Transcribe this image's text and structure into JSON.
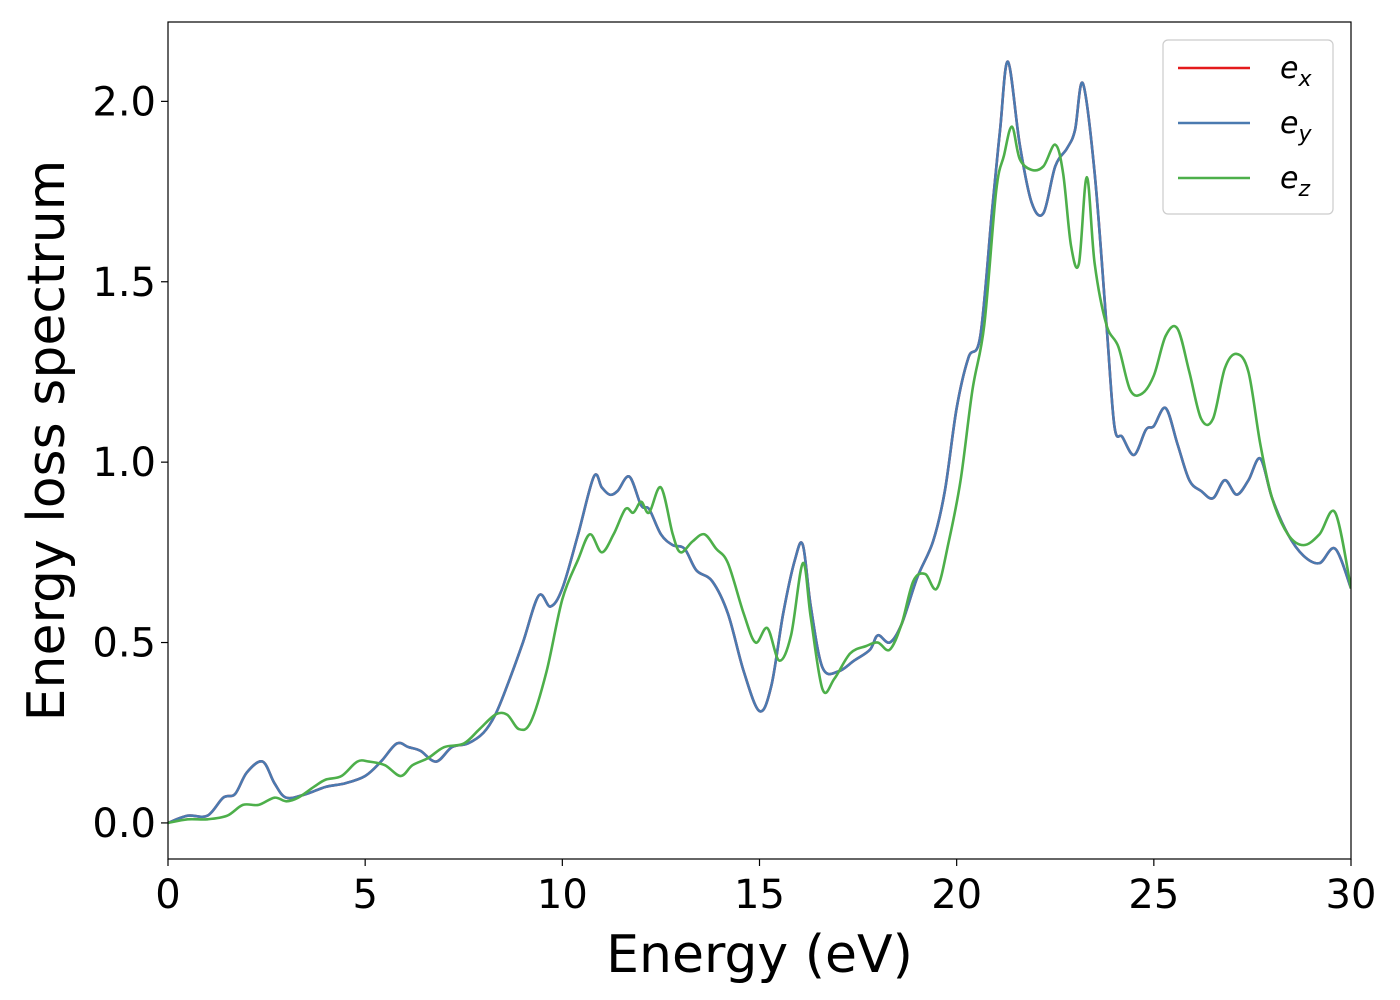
{
  "chart_data": {
    "type": "line",
    "xlabel": "Energy (eV)",
    "ylabel": "Energy loss spectrum",
    "xlim": [
      0,
      30
    ],
    "ylim": [
      -0.1,
      2.22
    ],
    "xticks": [
      0,
      5,
      10,
      15,
      20,
      25,
      30
    ],
    "xtick_labels": [
      "0",
      "5",
      "10",
      "15",
      "20",
      "25",
      "30"
    ],
    "yticks": [
      0.0,
      0.5,
      1.0,
      1.5,
      2.0
    ],
    "ytick_labels": [
      "0.0",
      "0.5",
      "1.0",
      "1.5",
      "2.0"
    ],
    "grid": false,
    "legend_position": "top-right",
    "series": [
      {
        "name": "e_x",
        "legend_base": "e",
        "legend_sub": "x",
        "color": "#e41a1c",
        "x": [
          0,
          0.5,
          1.0,
          1.4,
          1.7,
          2.0,
          2.4,
          2.7,
          3.0,
          3.5,
          4.0,
          4.5,
          5.0,
          5.4,
          5.8,
          6.1,
          6.4,
          6.8,
          7.2,
          7.6,
          8.0,
          8.3,
          8.6,
          9.0,
          9.4,
          9.7,
          10.0,
          10.4,
          10.8,
          11.0,
          11.2,
          11.4,
          11.7,
          12.0,
          12.2,
          12.5,
          12.8,
          13.1,
          13.4,
          13.8,
          14.2,
          14.6,
          15.0,
          15.3,
          15.6,
          15.9,
          16.1,
          16.3,
          16.6,
          17.0,
          17.4,
          17.8,
          18.0,
          18.3,
          18.6,
          19.0,
          19.4,
          19.7,
          20.0,
          20.3,
          20.6,
          20.9,
          21.1,
          21.3,
          21.6,
          21.9,
          22.2,
          22.5,
          22.8,
          23.0,
          23.2,
          23.5,
          23.8,
          24.0,
          24.2,
          24.5,
          24.8,
          25.0,
          25.3,
          25.6,
          25.9,
          26.2,
          26.5,
          26.8,
          27.1,
          27.4,
          27.7,
          28.0,
          28.4,
          28.8,
          29.2,
          29.6,
          30.0
        ],
        "y": [
          0.0,
          0.02,
          0.02,
          0.07,
          0.08,
          0.14,
          0.17,
          0.11,
          0.07,
          0.08,
          0.1,
          0.11,
          0.13,
          0.17,
          0.22,
          0.21,
          0.2,
          0.17,
          0.21,
          0.22,
          0.25,
          0.3,
          0.38,
          0.5,
          0.63,
          0.6,
          0.65,
          0.8,
          0.96,
          0.93,
          0.91,
          0.92,
          0.96,
          0.88,
          0.87,
          0.8,
          0.77,
          0.76,
          0.7,
          0.67,
          0.58,
          0.42,
          0.31,
          0.38,
          0.58,
          0.73,
          0.77,
          0.6,
          0.43,
          0.42,
          0.45,
          0.48,
          0.52,
          0.5,
          0.55,
          0.68,
          0.78,
          0.92,
          1.15,
          1.29,
          1.35,
          1.7,
          1.92,
          2.11,
          1.88,
          1.72,
          1.69,
          1.82,
          1.87,
          1.92,
          2.05,
          1.8,
          1.38,
          1.1,
          1.07,
          1.02,
          1.09,
          1.1,
          1.15,
          1.05,
          0.95,
          0.92,
          0.9,
          0.95,
          0.91,
          0.95,
          1.01,
          0.9,
          0.8,
          0.74,
          0.72,
          0.76,
          0.65
        ]
      },
      {
        "name": "e_y",
        "legend_base": "e",
        "legend_sub": "y",
        "color": "#4a7ab0",
        "x": [
          0,
          0.5,
          1.0,
          1.4,
          1.7,
          2.0,
          2.4,
          2.7,
          3.0,
          3.5,
          4.0,
          4.5,
          5.0,
          5.4,
          5.8,
          6.1,
          6.4,
          6.8,
          7.2,
          7.6,
          8.0,
          8.3,
          8.6,
          9.0,
          9.4,
          9.7,
          10.0,
          10.4,
          10.8,
          11.0,
          11.2,
          11.4,
          11.7,
          12.0,
          12.2,
          12.5,
          12.8,
          13.1,
          13.4,
          13.8,
          14.2,
          14.6,
          15.0,
          15.3,
          15.6,
          15.9,
          16.1,
          16.3,
          16.6,
          17.0,
          17.4,
          17.8,
          18.0,
          18.3,
          18.6,
          19.0,
          19.4,
          19.7,
          20.0,
          20.3,
          20.6,
          20.9,
          21.1,
          21.3,
          21.6,
          21.9,
          22.2,
          22.5,
          22.8,
          23.0,
          23.2,
          23.5,
          23.8,
          24.0,
          24.2,
          24.5,
          24.8,
          25.0,
          25.3,
          25.6,
          25.9,
          26.2,
          26.5,
          26.8,
          27.1,
          27.4,
          27.7,
          28.0,
          28.4,
          28.8,
          29.2,
          29.6,
          30.0
        ],
        "y": [
          0.0,
          0.02,
          0.02,
          0.07,
          0.08,
          0.14,
          0.17,
          0.11,
          0.07,
          0.08,
          0.1,
          0.11,
          0.13,
          0.17,
          0.22,
          0.21,
          0.2,
          0.17,
          0.21,
          0.22,
          0.25,
          0.3,
          0.38,
          0.5,
          0.63,
          0.6,
          0.65,
          0.8,
          0.96,
          0.93,
          0.91,
          0.92,
          0.96,
          0.88,
          0.87,
          0.8,
          0.77,
          0.76,
          0.7,
          0.67,
          0.58,
          0.42,
          0.31,
          0.38,
          0.58,
          0.73,
          0.77,
          0.6,
          0.43,
          0.42,
          0.45,
          0.48,
          0.52,
          0.5,
          0.55,
          0.68,
          0.78,
          0.92,
          1.15,
          1.29,
          1.35,
          1.7,
          1.92,
          2.11,
          1.88,
          1.72,
          1.69,
          1.82,
          1.87,
          1.92,
          2.05,
          1.8,
          1.38,
          1.1,
          1.07,
          1.02,
          1.09,
          1.1,
          1.15,
          1.05,
          0.95,
          0.92,
          0.9,
          0.95,
          0.91,
          0.95,
          1.01,
          0.9,
          0.8,
          0.74,
          0.72,
          0.76,
          0.65
        ]
      },
      {
        "name": "e_z",
        "legend_base": "e",
        "legend_sub": "z",
        "color": "#4daf4a",
        "x": [
          0,
          0.5,
          1.0,
          1.5,
          1.9,
          2.3,
          2.7,
          3.0,
          3.3,
          3.7,
          4.0,
          4.4,
          4.8,
          5.1,
          5.5,
          5.9,
          6.2,
          6.6,
          7.0,
          7.5,
          7.9,
          8.3,
          8.6,
          8.9,
          9.2,
          9.6,
          10.0,
          10.4,
          10.7,
          11.0,
          11.3,
          11.6,
          11.8,
          12.0,
          12.2,
          12.5,
          12.8,
          13.0,
          13.3,
          13.6,
          13.9,
          14.2,
          14.6,
          14.9,
          15.2,
          15.5,
          15.8,
          16.1,
          16.3,
          16.6,
          16.9,
          17.3,
          17.7,
          18.0,
          18.3,
          18.6,
          18.9,
          19.2,
          19.5,
          19.8,
          20.1,
          20.4,
          20.7,
          21.0,
          21.2,
          21.4,
          21.6,
          21.9,
          22.2,
          22.5,
          22.7,
          22.9,
          23.1,
          23.3,
          23.5,
          23.8,
          24.1,
          24.4,
          24.7,
          25.0,
          25.3,
          25.6,
          25.9,
          26.2,
          26.5,
          26.8,
          27.1,
          27.4,
          27.7,
          28.0,
          28.4,
          28.8,
          29.2,
          29.6,
          30.0
        ],
        "y": [
          0.0,
          0.01,
          0.01,
          0.02,
          0.05,
          0.05,
          0.07,
          0.06,
          0.07,
          0.1,
          0.12,
          0.13,
          0.17,
          0.17,
          0.16,
          0.13,
          0.16,
          0.18,
          0.21,
          0.22,
          0.26,
          0.3,
          0.3,
          0.26,
          0.28,
          0.42,
          0.62,
          0.73,
          0.8,
          0.75,
          0.8,
          0.87,
          0.86,
          0.89,
          0.86,
          0.93,
          0.8,
          0.75,
          0.78,
          0.8,
          0.76,
          0.72,
          0.58,
          0.5,
          0.54,
          0.45,
          0.52,
          0.72,
          0.57,
          0.37,
          0.4,
          0.47,
          0.49,
          0.5,
          0.48,
          0.55,
          0.67,
          0.69,
          0.65,
          0.78,
          0.95,
          1.2,
          1.38,
          1.75,
          1.85,
          1.93,
          1.84,
          1.81,
          1.82,
          1.88,
          1.8,
          1.6,
          1.55,
          1.79,
          1.55,
          1.38,
          1.32,
          1.2,
          1.19,
          1.24,
          1.35,
          1.37,
          1.25,
          1.12,
          1.12,
          1.26,
          1.3,
          1.25,
          1.05,
          0.9,
          0.8,
          0.77,
          0.8,
          0.86,
          0.65
        ]
      }
    ]
  }
}
